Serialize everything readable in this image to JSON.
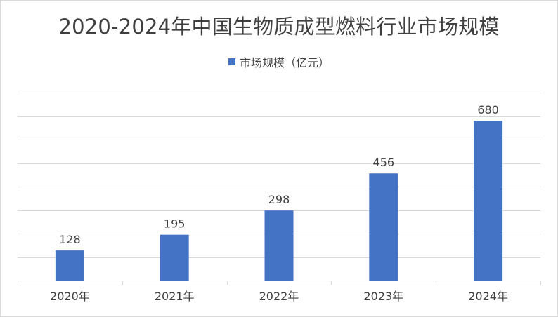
{
  "chart_data": {
    "type": "bar",
    "title": "2020-2024年中国生物质成型燃料行业市场规模",
    "categories": [
      "2020年",
      "2021年",
      "2022年",
      "2023年",
      "2024年"
    ],
    "series": [
      {
        "name": "市场规模（亿元）",
        "values": [
          128,
          195,
          298,
          456,
          680
        ],
        "color": "#4472C4"
      }
    ],
    "ylim": [
      0,
      800
    ],
    "grid": true,
    "legend_position": "top",
    "data_labels": true
  },
  "colors": {
    "bar": "#4472C4",
    "grid": "#d9d9d9",
    "text": "#404040"
  }
}
